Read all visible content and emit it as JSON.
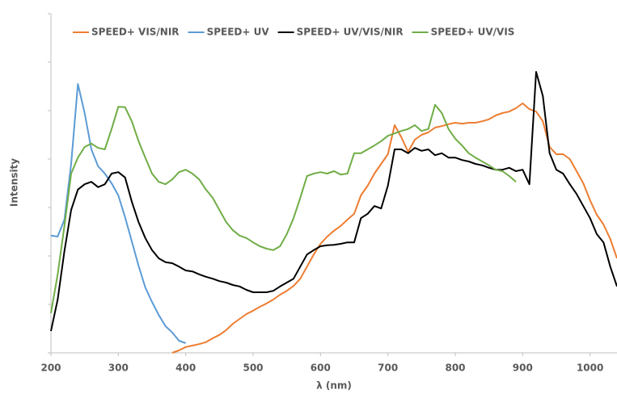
{
  "chart_data": {
    "type": "line",
    "x_label": "λ (nm)",
    "y_label": "Intensity",
    "x": [
      200,
      210,
      220,
      230,
      240,
      250,
      260,
      270,
      280,
      290,
      300,
      310,
      320,
      330,
      340,
      350,
      360,
      370,
      380,
      390,
      400,
      410,
      420,
      430,
      440,
      450,
      460,
      470,
      480,
      490,
      500,
      510,
      520,
      530,
      540,
      550,
      560,
      570,
      580,
      590,
      600,
      610,
      620,
      630,
      640,
      650,
      660,
      670,
      680,
      690,
      700,
      710,
      720,
      730,
      740,
      750,
      760,
      770,
      780,
      790,
      800,
      810,
      820,
      830,
      840,
      850,
      860,
      870,
      880,
      890,
      900,
      910,
      920,
      930,
      940,
      950,
      960,
      970,
      980,
      990,
      1000,
      1010,
      1020,
      1030,
      1040
    ],
    "xlim": [
      200,
      1040
    ],
    "xticks": [
      200,
      300,
      400,
      500,
      600,
      700,
      800,
      900,
      1000
    ],
    "ylim": [
      0,
      7
    ],
    "yticks": [
      0,
      1,
      2,
      3,
      4,
      5,
      6,
      7
    ],
    "legend": "top",
    "series": [
      {
        "name": "SPEED+ VIS/NIR",
        "color": "#ED7D31",
        "values": [
          null,
          null,
          null,
          null,
          null,
          null,
          null,
          null,
          null,
          null,
          null,
          null,
          null,
          null,
          null,
          null,
          null,
          null,
          0.0,
          0.05,
          0.12,
          0.15,
          0.18,
          0.22,
          0.3,
          0.37,
          0.47,
          0.6,
          0.7,
          0.8,
          0.87,
          0.95,
          1.02,
          1.1,
          1.2,
          1.28,
          1.38,
          1.53,
          1.78,
          2.03,
          2.25,
          2.4,
          2.52,
          2.62,
          2.75,
          2.87,
          3.25,
          3.45,
          3.7,
          3.9,
          4.1,
          4.7,
          4.45,
          4.15,
          4.4,
          4.5,
          4.55,
          4.65,
          4.68,
          4.72,
          4.75,
          4.73,
          4.75,
          4.75,
          4.78,
          4.82,
          4.9,
          4.95,
          4.98,
          5.05,
          5.15,
          5.03,
          4.98,
          4.78,
          4.25,
          4.1,
          4.1,
          4.0,
          3.75,
          3.5,
          3.15,
          2.85,
          2.65,
          2.35,
          1.95
        ]
      },
      {
        "name": "SPEED+ UV",
        "color": "#5B9BD5",
        "values": [
          2.42,
          2.4,
          2.75,
          3.9,
          5.55,
          4.95,
          4.2,
          3.85,
          3.7,
          3.5,
          3.25,
          2.8,
          2.3,
          1.8,
          1.35,
          1.05,
          0.78,
          0.55,
          0.42,
          0.25,
          0.2,
          null,
          null,
          null,
          null,
          null,
          null,
          null,
          null,
          null,
          null,
          null,
          null,
          null,
          null,
          null,
          null,
          null,
          null,
          null,
          null,
          null,
          null,
          null,
          null,
          null,
          null,
          null,
          null,
          null,
          null,
          null,
          null,
          null,
          null,
          null,
          null,
          null,
          null,
          null,
          null,
          null,
          null,
          null,
          null,
          null,
          null,
          null,
          null,
          null,
          null,
          null,
          null,
          null,
          null,
          null,
          null,
          null,
          null,
          null,
          null,
          null,
          null,
          null,
          null
        ]
      },
      {
        "name": "SPEED+ UV/VIS/NIR",
        "color": "#000000",
        "values": [
          0.45,
          1.1,
          2.1,
          2.95,
          3.37,
          3.48,
          3.53,
          3.42,
          3.48,
          3.7,
          3.73,
          3.62,
          3.12,
          2.7,
          2.37,
          2.12,
          1.95,
          1.87,
          1.85,
          1.78,
          1.7,
          1.68,
          1.62,
          1.57,
          1.53,
          1.48,
          1.45,
          1.4,
          1.37,
          1.3,
          1.25,
          1.25,
          1.25,
          1.28,
          1.37,
          1.45,
          1.53,
          1.78,
          2.03,
          2.12,
          2.2,
          2.22,
          2.23,
          2.25,
          2.28,
          2.28,
          2.78,
          2.87,
          3.03,
          2.98,
          3.45,
          4.2,
          4.2,
          4.12,
          4.23,
          4.17,
          4.2,
          4.08,
          4.12,
          4.03,
          4.03,
          3.98,
          3.95,
          3.9,
          3.87,
          3.82,
          3.78,
          3.78,
          3.82,
          3.75,
          3.78,
          3.48,
          5.8,
          5.3,
          4.12,
          3.78,
          3.7,
          3.48,
          3.28,
          3.03,
          2.78,
          2.45,
          2.28,
          1.78,
          1.37
        ]
      },
      {
        "name": "SPEED+ UV/VIS",
        "color": "#70AD47",
        "values": [
          0.82,
          1.62,
          2.62,
          3.7,
          4.03,
          4.25,
          4.32,
          4.23,
          4.2,
          4.62,
          5.08,
          5.07,
          4.78,
          4.37,
          4.03,
          3.7,
          3.53,
          3.48,
          3.58,
          3.73,
          3.78,
          3.7,
          3.58,
          3.37,
          3.2,
          2.95,
          2.7,
          2.53,
          2.42,
          2.37,
          2.28,
          2.2,
          2.15,
          2.12,
          2.2,
          2.45,
          2.78,
          3.2,
          3.65,
          3.7,
          3.73,
          3.7,
          3.75,
          3.68,
          3.7,
          4.12,
          4.12,
          4.2,
          4.28,
          4.37,
          4.48,
          4.53,
          4.58,
          4.62,
          4.7,
          4.58,
          4.62,
          5.12,
          4.95,
          4.62,
          4.42,
          4.28,
          4.12,
          4.03,
          3.95,
          3.87,
          3.78,
          3.75,
          3.65,
          3.53,
          null,
          null,
          null,
          null,
          null,
          null,
          null,
          null,
          null,
          null,
          null,
          null,
          null,
          null,
          null
        ]
      }
    ]
  }
}
